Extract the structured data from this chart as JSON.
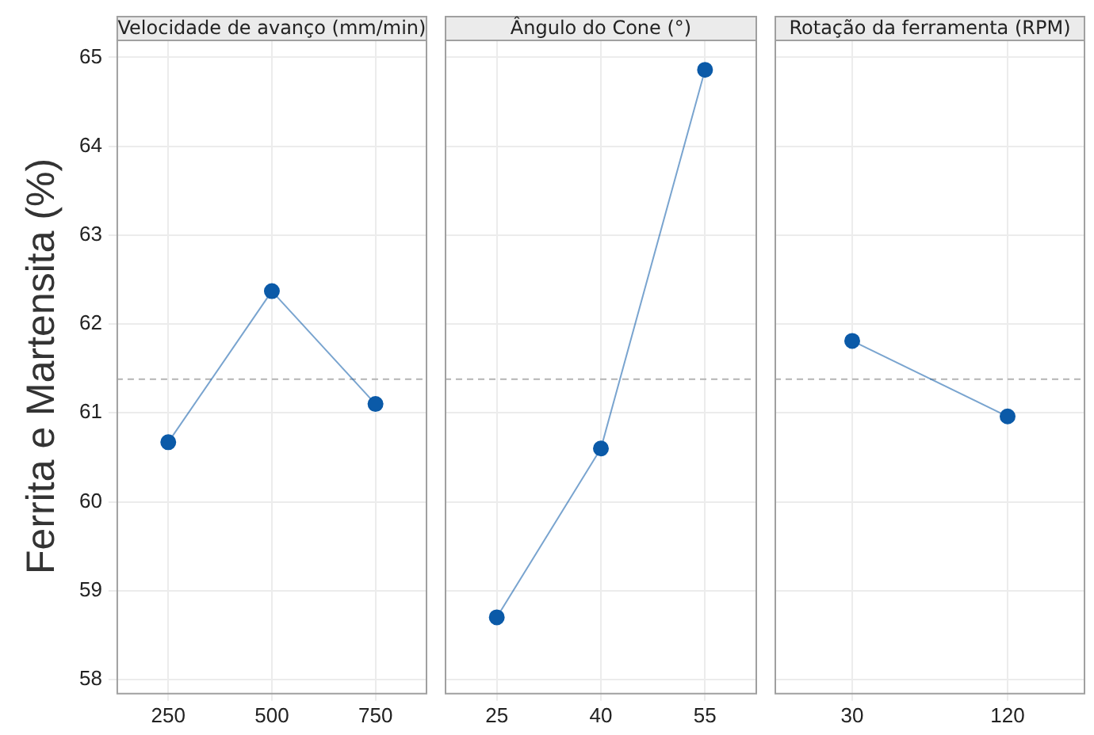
{
  "chart_data": [
    {
      "type": "line",
      "title": "Velocidade de avanço (mm/min)",
      "ylabel": "Ferrita e Martensita (%)",
      "categories": [
        "250",
        "500",
        "750"
      ],
      "values": [
        60.67,
        62.37,
        61.1
      ],
      "color": "#0b5aa8",
      "ylim": [
        57.85,
        65.2
      ],
      "yticks": [
        58,
        59,
        60,
        61,
        62,
        63,
        64,
        65
      ],
      "grid": true,
      "marker": "circle",
      "line_style": "solid",
      "ref_lines": [
        {
          "axis": "y",
          "value": 61.38,
          "line_style": "dashed",
          "color": "#b4b4b4"
        }
      ]
    },
    {
      "type": "line",
      "title": "Ângulo do Cone (°)",
      "categories": [
        "25",
        "40",
        "55"
      ],
      "values": [
        58.7,
        60.6,
        64.86
      ],
      "color": "#0b5aa8",
      "ylim": [
        57.85,
        65.2
      ],
      "yticks": [
        58,
        59,
        60,
        61,
        62,
        63,
        64,
        65
      ],
      "grid": true,
      "marker": "circle",
      "line_style": "solid",
      "tick_labels": "x",
      "ref_lines": [
        {
          "axis": "y",
          "value": 61.38,
          "line_style": "dashed",
          "color": "#b4b4b4"
        }
      ]
    },
    {
      "type": "line",
      "title": "Rotação da ferramenta (RPM)",
      "categories": [
        "30",
        "120"
      ],
      "values": [
        61.81,
        60.96
      ],
      "color": "#0b5aa8",
      "ylim": [
        57.85,
        65.2
      ],
      "yticks": [
        58,
        59,
        60,
        61,
        62,
        63,
        64,
        65
      ],
      "grid": true,
      "marker": "circle",
      "line_style": "solid",
      "tick_labels": "x",
      "ref_lines": [
        {
          "axis": "y",
          "value": 61.38,
          "line_style": "dashed",
          "color": "#b4b4b4"
        }
      ]
    }
  ]
}
